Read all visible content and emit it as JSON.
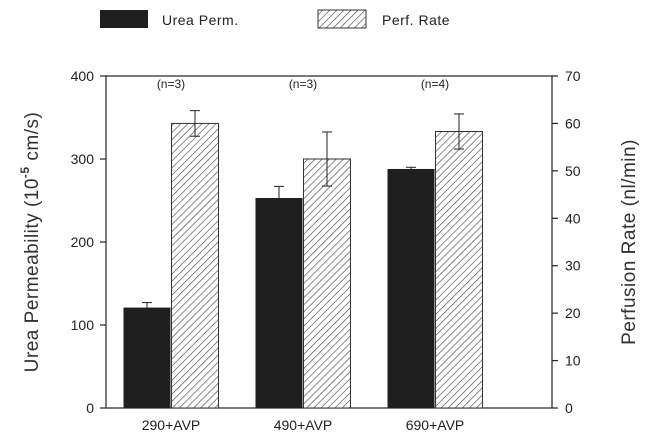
{
  "chart_data": {
    "type": "bar",
    "categories": [
      "290+AVP",
      "490+AVP",
      "690+AVP"
    ],
    "annotations": [
      "(n=3)",
      "(n=3)",
      "(n=4)"
    ],
    "series": [
      {
        "name": "Urea Perm.",
        "axis": "left",
        "values": [
          121,
          253,
          288
        ],
        "errors": [
          6,
          14,
          2
        ],
        "fill": "solid",
        "color": "#1f1f1f"
      },
      {
        "name": "Perf. Rate",
        "axis": "right",
        "values": [
          60,
          52.5,
          58.3
        ],
        "errors": [
          2.7,
          5.7,
          3.7
        ],
        "fill": "hatched",
        "color": "#555555"
      }
    ],
    "y_left": {
      "label_main": "Urea Permeability (10",
      "label_exp": "-5",
      "label_tail": " cm/s)",
      "range": [
        0,
        400
      ],
      "ticks": [
        "0",
        "100",
        "200",
        "300",
        "400"
      ]
    },
    "y_right": {
      "label": "Perfusion Rate (nl/min)",
      "range": [
        0,
        70
      ],
      "ticks": [
        "0",
        "10",
        "20",
        "30",
        "40",
        "50",
        "60",
        "70"
      ]
    },
    "legend_position": "top-left"
  }
}
